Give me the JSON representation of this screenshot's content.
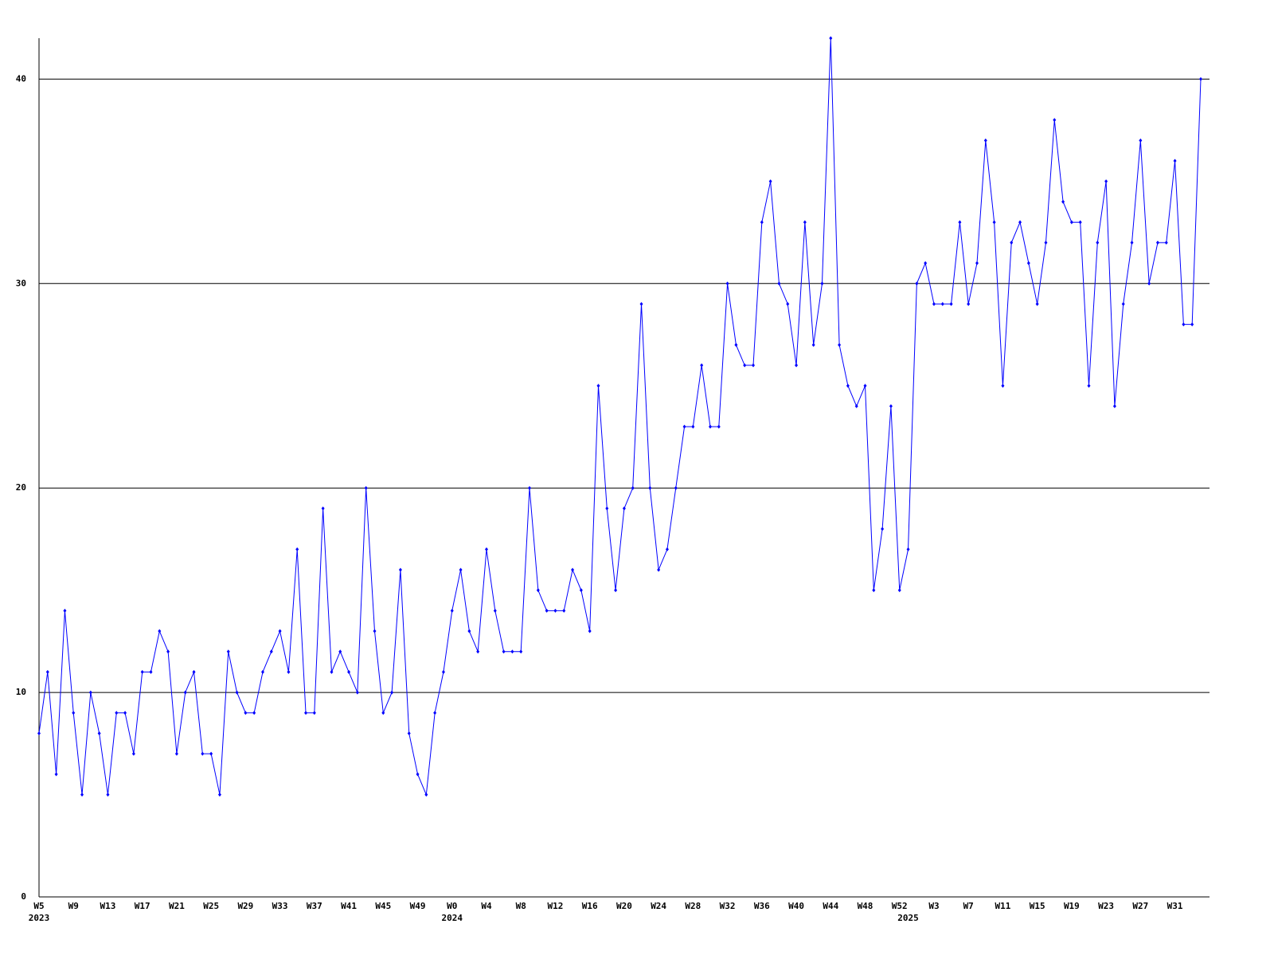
{
  "chart_data": {
    "type": "line",
    "categories": [
      "W5",
      null,
      null,
      null,
      "W9",
      null,
      null,
      null,
      "W13",
      null,
      null,
      null,
      "W17",
      null,
      null,
      null,
      "W21",
      null,
      null,
      null,
      "W25",
      null,
      null,
      null,
      "W29",
      null,
      null,
      null,
      "W33",
      null,
      null,
      null,
      "W37",
      null,
      null,
      null,
      "W41",
      null,
      null,
      null,
      "W45",
      null,
      null,
      null,
      "W49",
      null,
      null,
      null,
      "W0",
      null,
      null,
      null,
      "W4",
      null,
      null,
      null,
      "W8",
      null,
      null,
      null,
      "W12",
      null,
      null,
      null,
      "W16",
      null,
      null,
      null,
      "W20",
      null,
      null,
      null,
      "W24",
      null,
      null,
      null,
      "W28",
      null,
      null,
      null,
      "W32",
      null,
      null,
      null,
      "W36",
      null,
      null,
      null,
      "W40",
      null,
      null,
      null,
      "W44",
      null,
      null,
      null,
      "W48",
      null,
      null,
      null,
      "W52",
      null,
      null,
      null,
      "W3",
      null,
      null,
      null,
      "W7",
      null,
      null,
      null,
      "W11",
      null,
      null,
      null,
      "W15",
      null,
      null,
      null,
      "W19",
      null,
      null,
      null,
      "W23",
      null,
      null,
      null,
      "W27",
      null,
      null,
      null,
      "W31",
      null,
      null,
      null
    ],
    "sublabels": [
      "2023",
      null,
      null,
      null,
      null,
      null,
      null,
      null,
      null,
      null,
      null,
      null,
      null,
      null,
      null,
      null,
      null,
      null,
      null,
      null,
      null,
      null,
      null,
      null,
      null,
      null,
      null,
      null,
      null,
      null,
      null,
      null,
      null,
      null,
      null,
      null,
      null,
      null,
      null,
      null,
      null,
      null,
      null,
      null,
      null,
      null,
      null,
      null,
      "2024",
      null,
      null,
      null,
      null,
      null,
      null,
      null,
      null,
      null,
      null,
      null,
      null,
      null,
      null,
      null,
      null,
      null,
      null,
      null,
      null,
      null,
      null,
      null,
      null,
      null,
      null,
      null,
      null,
      null,
      null,
      null,
      null,
      null,
      null,
      null,
      null,
      null,
      null,
      null,
      null,
      null,
      null,
      null,
      null,
      null,
      null,
      null,
      null,
      null,
      null,
      null,
      null,
      "2025",
      null,
      null,
      null,
      null,
      null,
      null,
      null,
      null,
      null,
      null,
      null,
      null,
      null,
      null,
      null,
      null,
      null,
      null,
      null,
      null,
      null,
      null,
      null,
      null,
      null,
      null,
      null,
      null,
      null,
      null,
      null,
      null,
      null,
      null
    ],
    "values": [
      8,
      11,
      6,
      14,
      9,
      5,
      10,
      8,
      5,
      9,
      9,
      7,
      11,
      11,
      13,
      12,
      7,
      10,
      11,
      7,
      7,
      5,
      12,
      10,
      9,
      9,
      11,
      12,
      13,
      11,
      17,
      9,
      9,
      19,
      11,
      12,
      11,
      10,
      20,
      13,
      9,
      10,
      16,
      8,
      6,
      5,
      9,
      11,
      14,
      16,
      13,
      12,
      17,
      14,
      12,
      12,
      12,
      20,
      15,
      14,
      14,
      14,
      16,
      15,
      13,
      25,
      19,
      15,
      19,
      20,
      29,
      20,
      16,
      17,
      20,
      23,
      23,
      26,
      23,
      23,
      30,
      27,
      26,
      26,
      33,
      35,
      30,
      29,
      26,
      33,
      27,
      30,
      42,
      27,
      25,
      24,
      25,
      15,
      18,
      24,
      15,
      17,
      30,
      31,
      29,
      29,
      29,
      33,
      29,
      31,
      37,
      33,
      25,
      32,
      33,
      31,
      29,
      32,
      38,
      34,
      33,
      33,
      25,
      32,
      35,
      24,
      29,
      32,
      37,
      30,
      32,
      32,
      36,
      28,
      28,
      40
    ],
    "color": "#0000ff",
    "ylim": [
      0,
      42
    ],
    "yticks": [
      0,
      10,
      20,
      30,
      40
    ],
    "grid": true
  }
}
